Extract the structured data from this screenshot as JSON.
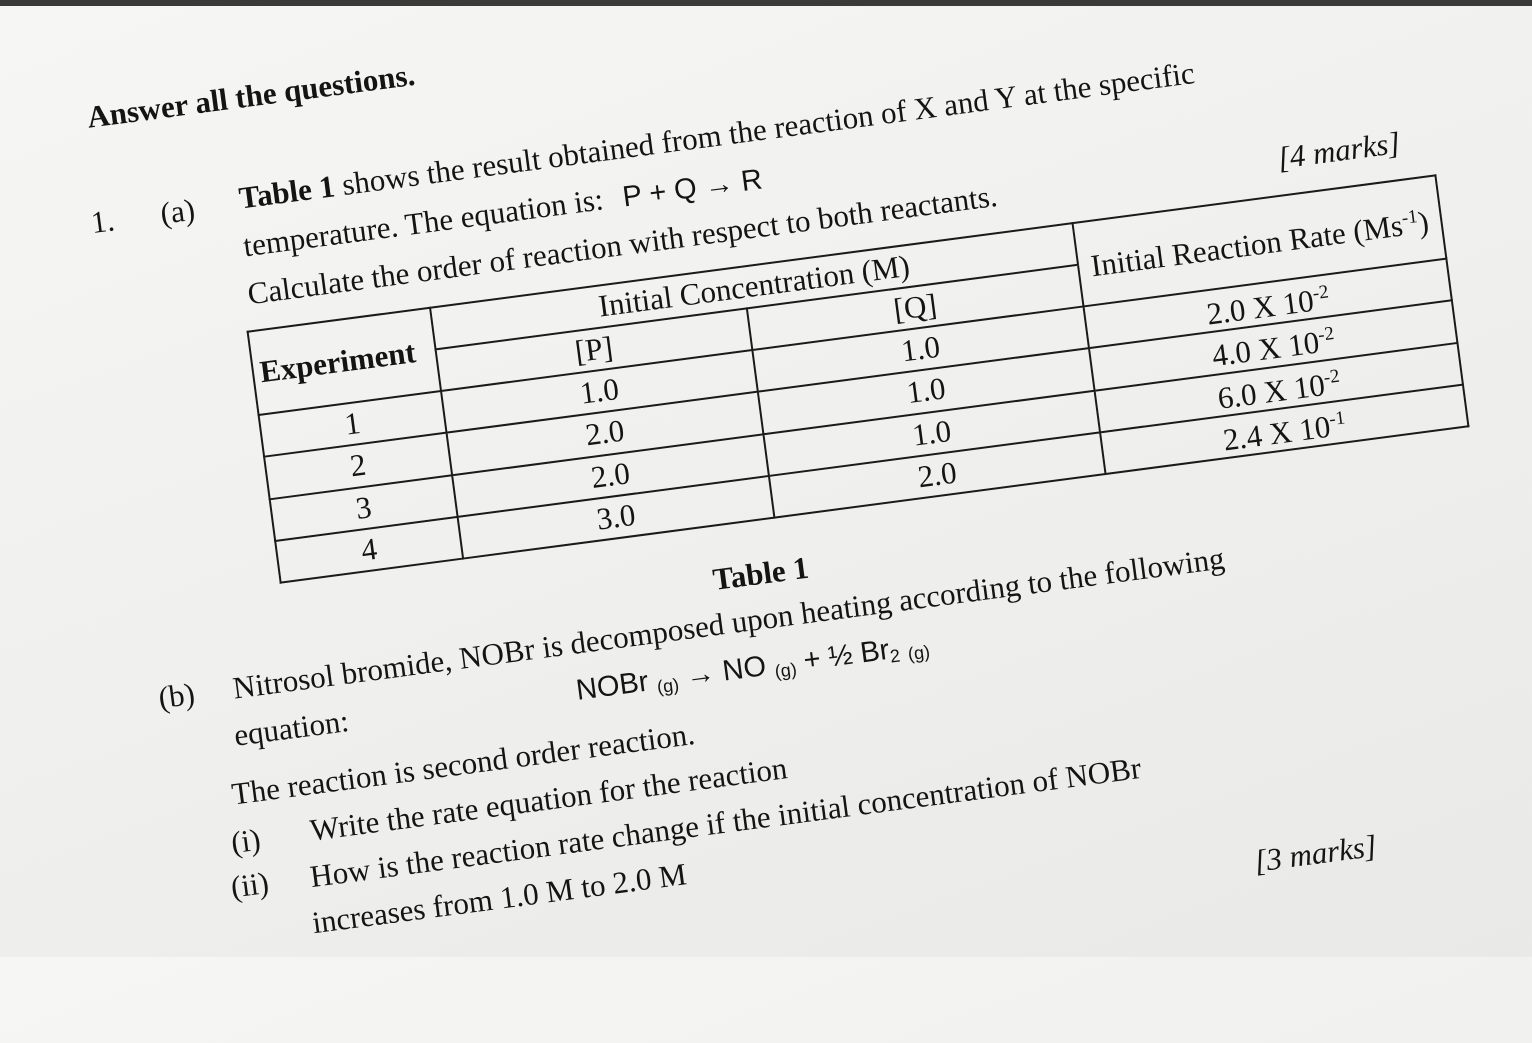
{
  "instructions": "Answer all the questions.",
  "question1": {
    "number": "1.",
    "part_a": {
      "label": "(a)",
      "line1_bold": "Table 1",
      "line1": " shows the result obtained from the reaction of X and Y at the specific",
      "line2": "temperature. The equation is:",
      "equation": "P + Q → R",
      "line3": "Calculate the order of reaction with respect to both reactants.",
      "marks": "[4 marks]",
      "table": {
        "headers": {
          "experiment": "Experiment",
          "concentration": "Initial Concentration (M)",
          "p": "[P]",
          "q": "[Q]",
          "rate": "Initial Reaction Rate (Ms",
          "rate_exp": "-1",
          "rate_close": ")"
        },
        "rows": [
          {
            "exp": "1",
            "p": "1.0",
            "q": "1.0",
            "rate": "2.0 X 10",
            "rate_exp": "-2"
          },
          {
            "exp": "2",
            "p": "2.0",
            "q": "1.0",
            "rate": "4.0 X 10",
            "rate_exp": "-2"
          },
          {
            "exp": "3",
            "p": "2.0",
            "q": "1.0",
            "rate": "6.0 X 10",
            "rate_exp": "-2"
          },
          {
            "exp": "4",
            "p": "3.0",
            "q": "2.0",
            "rate": "2.4 X 10",
            "rate_exp": "-1"
          }
        ],
        "caption": "Table 1"
      }
    },
    "part_b": {
      "label": "(b)",
      "line1": "Nitrosol bromide, NOBr is decomposed upon heating according to the following",
      "line2": "equation:",
      "eq": {
        "r": "NOBr",
        "r_state": "(g)",
        "arrow": " → ",
        "p1": "NO",
        "p1_state": "(g)",
        "plus": " +  ½ Br",
        "p2_sub": "2",
        "p2_state": "(g)"
      },
      "line3": "The reaction is second order reaction.",
      "i_label": "(i)",
      "i_text": "Write the rate equation for the reaction",
      "ii_label": "(ii)",
      "ii_text": "How is the reaction rate change if the initial concentration of NOBr",
      "ii_text2": "increases from 1.0 M to 2.0 M",
      "marks": "[3 marks]"
    }
  }
}
